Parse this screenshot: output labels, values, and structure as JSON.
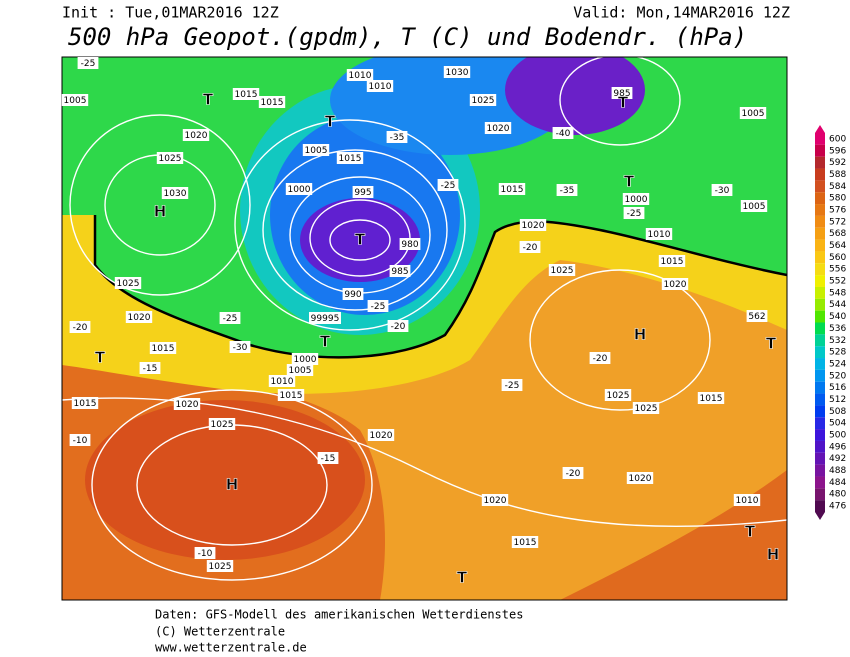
{
  "header": {
    "init": "Init : Tue,01MAR2016  12Z",
    "valid": "Valid: Mon,14MAR2016  12Z",
    "title": "500 hPa Geopot.(gpdm), T (C) und Bodendr. (hPa)"
  },
  "footer": [
    "Daten: GFS-Modell des amerikanischen Wetterdienstes",
    "(C) Wetterzentrale",
    "www.wetterzentrale.de"
  ],
  "colorbar": {
    "levels": [
      "600",
      "596",
      "592",
      "588",
      "584",
      "580",
      "576",
      "572",
      "568",
      "564",
      "560",
      "556",
      "552",
      "548",
      "544",
      "540",
      "536",
      "532",
      "528",
      "524",
      "520",
      "516",
      "512",
      "508",
      "504",
      "500",
      "496",
      "492",
      "488",
      "484",
      "480",
      "476"
    ],
    "colors": [
      "#e0006e",
      "#c8004a",
      "#b4282d",
      "#c83c1e",
      "#d25020",
      "#dc6414",
      "#e67814",
      "#f08c14",
      "#f5a014",
      "#fab414",
      "#fac814",
      "#f5dc14",
      "#f0f000",
      "#c8f000",
      "#96eb00",
      "#50e600",
      "#00dc50",
      "#00d296",
      "#00c8c8",
      "#00b4e6",
      "#0096f0",
      "#0078f0",
      "#005af0",
      "#003cf0",
      "#2828e6",
      "#3c14dc",
      "#5014c8",
      "#6414b4",
      "#7814a0",
      "#8c148c",
      "#78146e",
      "#500a50"
    ]
  },
  "map": {
    "labels": [
      "-25",
      "1005",
      "1015",
      "1015",
      "1010",
      "1010",
      "1030",
      "1025",
      "985",
      "1005",
      "1020",
      "1025",
      "1030",
      "1020",
      "-40",
      "-35",
      "1005",
      "1015",
      "-25",
      "1015",
      "-35",
      "1000",
      "-30",
      "1005",
      "1000",
      "-25",
      "995",
      "980",
      "985",
      "1020",
      "-20",
      "1010",
      "1025",
      "1015",
      "1025",
      "1020",
      "990",
      "1020",
      "-25",
      "-25",
      "99995",
      "-20",
      "-20",
      "-30",
      "1015",
      "1000",
      "1005",
      "-15",
      "-20",
      "1010",
      "1015",
      "-25",
      "1025",
      "1025",
      "1015",
      "1015",
      "1020",
      "1025",
      "-10",
      "1020",
      "-15",
      "-20",
      "1020",
      "1020",
      "1010",
      "1015",
      "-10",
      "1025",
      "562"
    ],
    "markers": [
      "T",
      "T",
      "T",
      "T",
      "H",
      "T",
      "T",
      "T",
      "H",
      "H",
      "T",
      "H",
      "T",
      "T"
    ]
  }
}
